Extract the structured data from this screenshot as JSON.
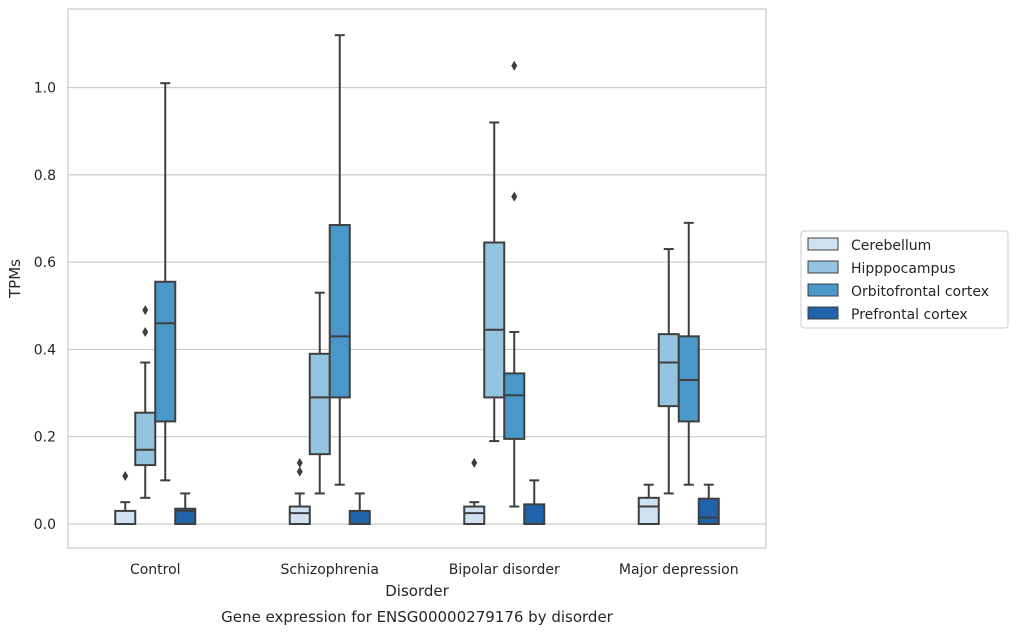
{
  "chart_data": {
    "type": "box",
    "caption": "Gene expression for ENSG00000279176 by disorder",
    "xlabel": "Disorder",
    "ylabel": "TPMs",
    "ylim": [
      -0.055,
      1.18
    ],
    "yticks": [
      0.0,
      0.2,
      0.4,
      0.6,
      0.8,
      1.0
    ],
    "ytick_labels": [
      "0.0",
      "0.2",
      "0.4",
      "0.6",
      "0.8",
      "1.0"
    ],
    "categories": [
      "Control",
      "Schizophrenia",
      "Bipolar disorder",
      "Major depression"
    ],
    "grid": "horizontal",
    "legend_position": "right",
    "series": [
      {
        "name": "Cerebellum",
        "color": "#d0e1f2",
        "boxes": [
          {
            "whislo": 0.0,
            "q1": 0.0,
            "med": 0.0,
            "q3": 0.03,
            "whishi": 0.05,
            "fliers": [
              0.11
            ]
          },
          {
            "whislo": 0.0,
            "q1": 0.0,
            "med": 0.025,
            "q3": 0.04,
            "whishi": 0.07,
            "fliers": [
              0.12,
              0.14
            ]
          },
          {
            "whislo": 0.0,
            "q1": 0.0,
            "med": 0.025,
            "q3": 0.04,
            "whishi": 0.05,
            "fliers": [
              0.14
            ]
          },
          {
            "whislo": 0.0,
            "q1": 0.0,
            "med": 0.04,
            "q3": 0.06,
            "whishi": 0.09,
            "fliers": []
          }
        ]
      },
      {
        "name": "Hipppocampus",
        "color": "#94c4df",
        "boxes": [
          {
            "whislo": 0.06,
            "q1": 0.135,
            "med": 0.17,
            "q3": 0.255,
            "whishi": 0.37,
            "fliers": [
              0.44,
              0.49
            ]
          },
          {
            "whislo": 0.07,
            "q1": 0.16,
            "med": 0.29,
            "q3": 0.39,
            "whishi": 0.53,
            "fliers": []
          },
          {
            "whislo": 0.19,
            "q1": 0.29,
            "med": 0.445,
            "q3": 0.645,
            "whishi": 0.92,
            "fliers": []
          },
          {
            "whislo": 0.07,
            "q1": 0.27,
            "med": 0.37,
            "q3": 0.435,
            "whishi": 0.63,
            "fliers": []
          }
        ]
      },
      {
        "name": "Orbitofrontal cortex",
        "color": "#4a98c9",
        "boxes": [
          {
            "whislo": 0.1,
            "q1": 0.235,
            "med": 0.46,
            "q3": 0.555,
            "whishi": 1.01,
            "fliers": []
          },
          {
            "whislo": 0.09,
            "q1": 0.29,
            "med": 0.43,
            "q3": 0.685,
            "whishi": 1.12,
            "fliers": []
          },
          {
            "whislo": 0.04,
            "q1": 0.195,
            "med": 0.295,
            "q3": 0.345,
            "whishi": 0.44,
            "fliers": [
              0.75,
              1.05
            ]
          },
          {
            "whislo": 0.09,
            "q1": 0.235,
            "med": 0.33,
            "q3": 0.43,
            "whishi": 0.69,
            "fliers": []
          }
        ]
      },
      {
        "name": "Prefrontal cortex",
        "color": "#2163aa",
        "boxes": [
          {
            "whislo": 0.0,
            "q1": 0.0,
            "med": 0.03,
            "q3": 0.035,
            "whishi": 0.07,
            "fliers": []
          },
          {
            "whislo": 0.0,
            "q1": 0.0,
            "med": 0.0,
            "q3": 0.03,
            "whishi": 0.07,
            "fliers": []
          },
          {
            "whislo": 0.0,
            "q1": 0.0,
            "med": 0.0,
            "q3": 0.045,
            "whishi": 0.1,
            "fliers": []
          },
          {
            "whislo": 0.0,
            "q1": 0.0,
            "med": 0.015,
            "q3": 0.058,
            "whishi": 0.09,
            "fliers": []
          }
        ]
      }
    ]
  }
}
